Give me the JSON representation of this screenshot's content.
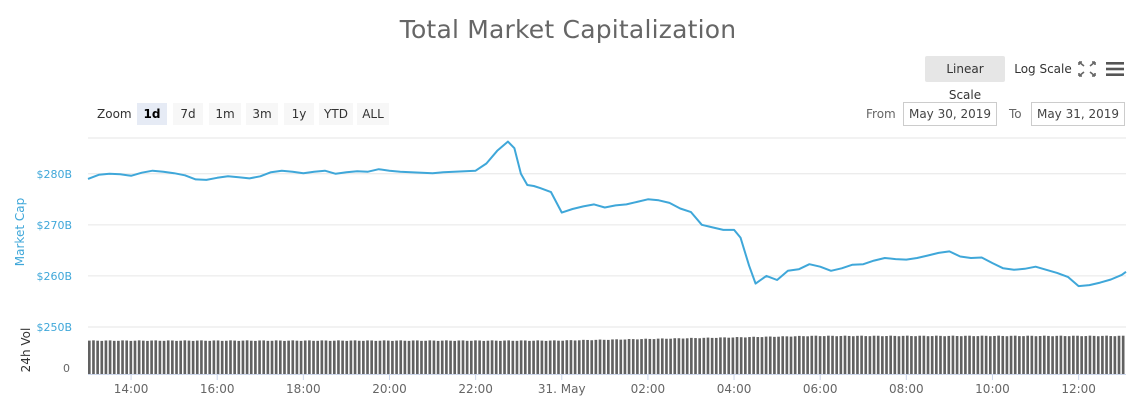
{
  "chart_data": {
    "type": "line",
    "title": "Total Market Capitalization",
    "ylabel": "Market Cap",
    "y2label": "24h Vol",
    "y_ticks": [
      "$280B",
      "$270B",
      "$260B",
      "$250B"
    ],
    "y_tick_values": [
      280,
      270,
      260,
      250
    ],
    "ylim": [
      250,
      287
    ],
    "vol_ticks": [
      "0"
    ],
    "x_ticks": [
      "14:00",
      "16:00",
      "18:00",
      "20:00",
      "22:00",
      "31. May",
      "02:00",
      "04:00",
      "06:00",
      "08:00",
      "10:00",
      "12:00"
    ],
    "x_tick_hours": [
      14,
      16,
      18,
      20,
      22,
      24,
      26,
      28,
      30,
      32,
      34,
      36
    ],
    "xlim_hours": [
      13.0,
      37.1
    ],
    "series": [
      {
        "color": "#3fa7d9",
        "x": [
          13.0,
          13.25,
          13.5,
          13.75,
          14.0,
          14.25,
          14.5,
          14.75,
          15.0,
          15.25,
          15.5,
          15.75,
          16.0,
          16.25,
          16.5,
          16.75,
          17.0,
          17.25,
          17.5,
          17.75,
          18.0,
          18.25,
          18.5,
          18.75,
          19.0,
          19.25,
          19.5,
          19.75,
          20.0,
          20.25,
          20.5,
          20.75,
          21.0,
          21.25,
          21.5,
          21.75,
          22.0,
          22.25,
          22.5,
          22.75,
          22.9,
          23.05,
          23.2,
          23.35,
          23.5,
          23.75,
          24.0,
          24.25,
          24.5,
          24.75,
          25.0,
          25.25,
          25.5,
          25.75,
          26.0,
          26.25,
          26.5,
          26.75,
          27.0,
          27.25,
          27.5,
          27.75,
          28.0,
          28.15,
          28.35,
          28.5,
          28.75,
          29.0,
          29.25,
          29.5,
          29.75,
          30.0,
          30.25,
          30.5,
          30.75,
          31.0,
          31.25,
          31.5,
          31.75,
          32.0,
          32.25,
          32.5,
          32.75,
          33.0,
          33.25,
          33.5,
          33.75,
          34.0,
          34.25,
          34.5,
          34.75,
          35.0,
          35.25,
          35.5,
          35.75,
          36.0,
          36.25,
          36.5,
          36.75,
          37.0,
          37.1
        ],
        "values": [
          279,
          279.8,
          280,
          279.9,
          279.6,
          280.2,
          280.6,
          280.4,
          280.1,
          279.7,
          278.9,
          278.8,
          279.2,
          279.5,
          279.3,
          279.1,
          279.5,
          280.3,
          280.6,
          280.4,
          280.1,
          280.4,
          280.6,
          280.0,
          280.3,
          280.5,
          280.4,
          280.9,
          280.6,
          280.4,
          280.3,
          280.2,
          280.1,
          280.3,
          280.4,
          280.5,
          280.6,
          282.0,
          284.5,
          286.3,
          285.0,
          280.0,
          277.8,
          277.6,
          277.2,
          276.4,
          272.4,
          273.1,
          273.6,
          274.0,
          273.4,
          273.8,
          274.0,
          274.5,
          275.0,
          274.8,
          274.3,
          273.2,
          272.5,
          270.0,
          269.5,
          269.0,
          269.0,
          267.5,
          262.0,
          258.5,
          260.0,
          259.2,
          261.0,
          261.3,
          262.3,
          261.8,
          261.0,
          261.5,
          262.2,
          262.3,
          263.0,
          263.5,
          263.3,
          263.2,
          263.5,
          264.0,
          264.5,
          264.8,
          263.8,
          263.5,
          263.6,
          262.5,
          261.5,
          261.2,
          261.4,
          261.8,
          261.2,
          260.6,
          259.8,
          258.0,
          258.2,
          258.7,
          259.3,
          260.2,
          260.8
        ]
      }
    ],
    "volume": {
      "color": "#616161",
      "start_level": 0.71,
      "end_level": 0.81
    },
    "grid": true,
    "legend": "none"
  },
  "controls": {
    "linear_label": "Linear Scale",
    "log_label": "Log Scale",
    "zoom_label": "Zoom",
    "zoom_buttons": [
      "1d",
      "7d",
      "1m",
      "3m",
      "1y",
      "YTD",
      "ALL"
    ],
    "from_label": "From",
    "from_value": "May 30, 2019",
    "to_label": "To",
    "to_value": "May 31, 2019",
    "fullscreen_icon": "fullscreen-icon",
    "menu_icon": "hamburger-menu-icon"
  }
}
